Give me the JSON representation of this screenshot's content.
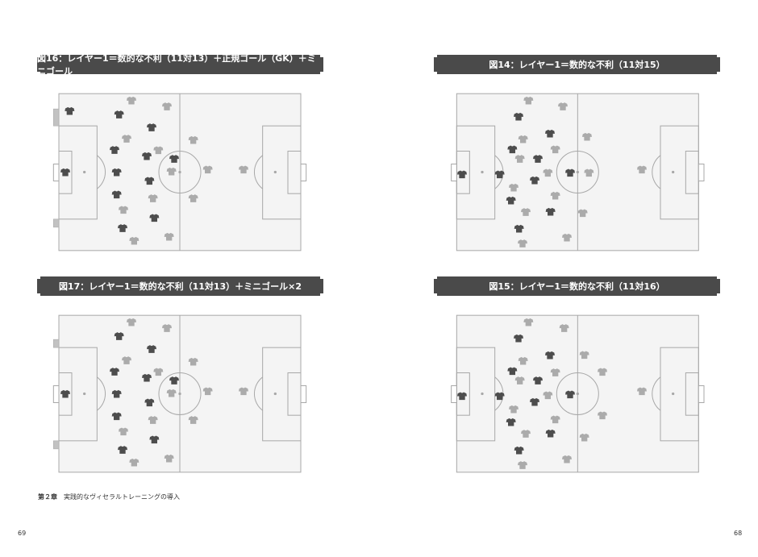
{
  "figures": [
    {
      "title": "図16：レイヤー1＝数的な不利（11対13）＋正規ゴール（GK）＋ミニゴール",
      "dark_players": 12,
      "light_players": 13,
      "mini_goals": 2
    },
    {
      "title": "図14：レイヤー1＝数的な不利（11対15）",
      "dark_players": 11,
      "light_players": 15
    },
    {
      "title": "図17：レイヤー1＝数的な不利（11対13）＋ミニゴール×2",
      "dark_players": 11,
      "light_players": 13,
      "mini_goals": 2
    },
    {
      "title": "図15：レイヤー1＝数的な不利（11対16）",
      "dark_players": 11,
      "light_players": 16
    }
  ],
  "footer": {
    "chapter": "第２章",
    "title": "実践的なヴィセラルトレーニングの導入"
  },
  "page_numbers": {
    "left": "69",
    "right": "68"
  },
  "colors": {
    "banner": "#4a4a4a",
    "pitch": "#f4f4f4",
    "lines": "#a8a8a8",
    "dark_team": "#4d4d4d",
    "light_team": "#ababab"
  }
}
